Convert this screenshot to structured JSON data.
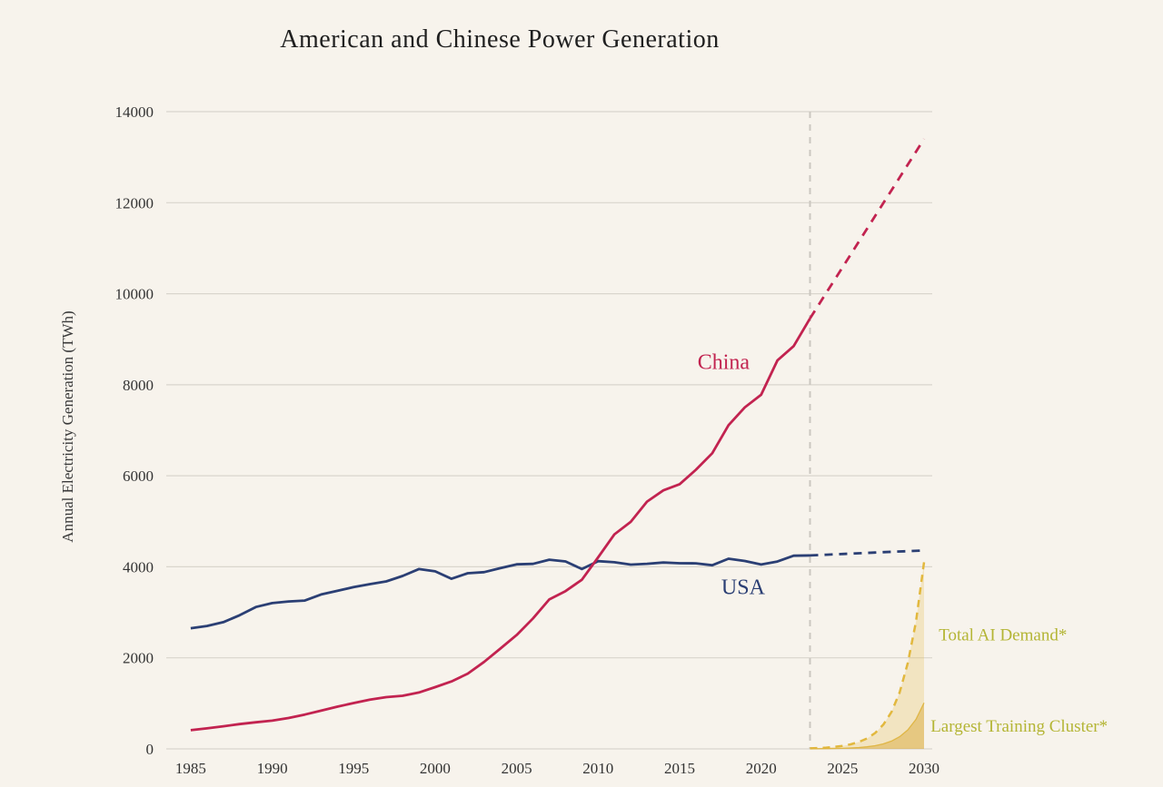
{
  "title": "American and Chinese Power Generation",
  "chart_data": {
    "type": "line",
    "title": "American and Chinese Power Generation",
    "xlabel": "",
    "ylabel": "Annual Electricity Generation (TWh)",
    "xlim": [
      1983.5,
      2030.5
    ],
    "ylim": [
      0,
      14000
    ],
    "x_ticks": [
      1985,
      1990,
      1995,
      2000,
      2005,
      2010,
      2015,
      2020,
      2025,
      2030
    ],
    "y_ticks": [
      0,
      2000,
      4000,
      6000,
      8000,
      10000,
      12000,
      14000
    ],
    "grid": "horizontal",
    "legend": "inline-annotations",
    "forecast_divider_x": 2023,
    "style": {
      "background": "#f7f3ec",
      "grid_color": "#d9d5cd",
      "tick_color": "#333333",
      "divider_color": "#cbc7c0",
      "china_color": "#c22350",
      "usa_color": "#2b3f74",
      "ai_color": "#e2b83e",
      "ai_label_color": "#b4b535"
    },
    "series": [
      {
        "name": "Total AI Demand",
        "color": "#e2b83e",
        "width": 2.5,
        "dash": "8 6",
        "fill": "rgba(226,184,62,0.25)",
        "x": [
          2023,
          2023.5,
          2024,
          2024.5,
          2025,
          2025.5,
          2026,
          2026.5,
          2027,
          2027.5,
          2028,
          2028.5,
          2029,
          2029.5,
          2030
        ],
        "values": [
          12,
          18,
          28,
          43,
          65,
          99,
          151,
          230,
          350,
          533,
          812,
          1237,
          1884,
          2790,
          4100
        ]
      },
      {
        "name": "Largest Training Cluster",
        "color": "rgba(222,178,60,0.9)",
        "width": 1.3,
        "dash": "none",
        "fill": "rgba(214,166,52,0.45)",
        "x": [
          2023,
          2023.5,
          2024,
          2024.5,
          2025,
          2025.5,
          2026,
          2026.5,
          2027,
          2027.5,
          2028,
          2028.5,
          2029,
          2029.5,
          2030
        ],
        "values": [
          2,
          3,
          5,
          8,
          12,
          19,
          29,
          45,
          70,
          110,
          171,
          267,
          416,
          649,
          1012
        ]
      },
      {
        "name": "USA",
        "color": "#2b3f74",
        "width": 2.8,
        "dash": "none",
        "x": [
          1985,
          1986,
          1987,
          1988,
          1989,
          1990,
          1991,
          1992,
          1993,
          1994,
          1995,
          1996,
          1997,
          1998,
          1999,
          2000,
          2001,
          2002,
          2003,
          2004,
          2005,
          2006,
          2007,
          2008,
          2009,
          2010,
          2011,
          2012,
          2013,
          2014,
          2015,
          2016,
          2017,
          2018,
          2019,
          2020,
          2021,
          2022,
          2023
        ],
        "values": [
          2650,
          2700,
          2784,
          2935,
          3118,
          3203,
          3239,
          3258,
          3393,
          3472,
          3554,
          3620,
          3680,
          3800,
          3950,
          3900,
          3737,
          3858,
          3883,
          3971,
          4055,
          4065,
          4157,
          4119,
          3950,
          4125,
          4100,
          4048,
          4066,
          4094,
          4078,
          4077,
          4035,
          4178,
          4128,
          4050,
          4116,
          4243,
          4250
        ]
      },
      {
        "name": "USA projected",
        "color": "#2b3f74",
        "width": 2.8,
        "dash": "9 7",
        "x": [
          2023,
          2024,
          2025,
          2026,
          2027,
          2028,
          2029,
          2030
        ],
        "values": [
          4250,
          4266,
          4282,
          4298,
          4313,
          4329,
          4344,
          4360
        ]
      },
      {
        "name": "China",
        "color": "#c22350",
        "width": 2.8,
        "dash": "none",
        "x": [
          1985,
          1986,
          1987,
          1988,
          1989,
          1990,
          1991,
          1992,
          1993,
          1994,
          1995,
          1996,
          1997,
          1998,
          1999,
          2000,
          2001,
          2002,
          2003,
          2004,
          2005,
          2006,
          2007,
          2008,
          2009,
          2010,
          2011,
          2012,
          2013,
          2014,
          2015,
          2016,
          2017,
          2018,
          2019,
          2020,
          2021,
          2022,
          2023
        ],
        "values": [
          410,
          450,
          497,
          545,
          585,
          621,
          678,
          754,
          839,
          928,
          1008,
          1081,
          1136,
          1167,
          1239,
          1356,
          1481,
          1654,
          1911,
          2203,
          2500,
          2866,
          3282,
          3467,
          3715,
          4207,
          4713,
          4988,
          5432,
          5680,
          5815,
          6133,
          6495,
          7111,
          7503,
          7779,
          8534,
          8849,
          9456
        ]
      },
      {
        "name": "China projected",
        "color": "#c22350",
        "width": 2.8,
        "dash": "10 8",
        "x": [
          2023,
          2024,
          2025,
          2026,
          2027,
          2028,
          2029,
          2030
        ],
        "values": [
          9456,
          10019,
          10582,
          11146,
          11709,
          12272,
          12836,
          13400
        ]
      }
    ],
    "annotations": [
      {
        "text": "China",
        "x": 2017.7,
        "y": 8350,
        "color": "#c22350",
        "size": 24,
        "anchor": "middle"
      },
      {
        "text": "USA",
        "x": 2018.9,
        "y": 3400,
        "color": "#2b3f74",
        "size": 24,
        "anchor": "middle"
      },
      {
        "text": "Total AI Demand*",
        "x": 2030.9,
        "y": 2380,
        "color": "#b4b535",
        "size": 19,
        "anchor": "start"
      },
      {
        "text": "Largest Training Cluster*",
        "x": 2030.4,
        "y": 380,
        "color": "#b4b535",
        "size": 19,
        "anchor": "start"
      }
    ]
  }
}
